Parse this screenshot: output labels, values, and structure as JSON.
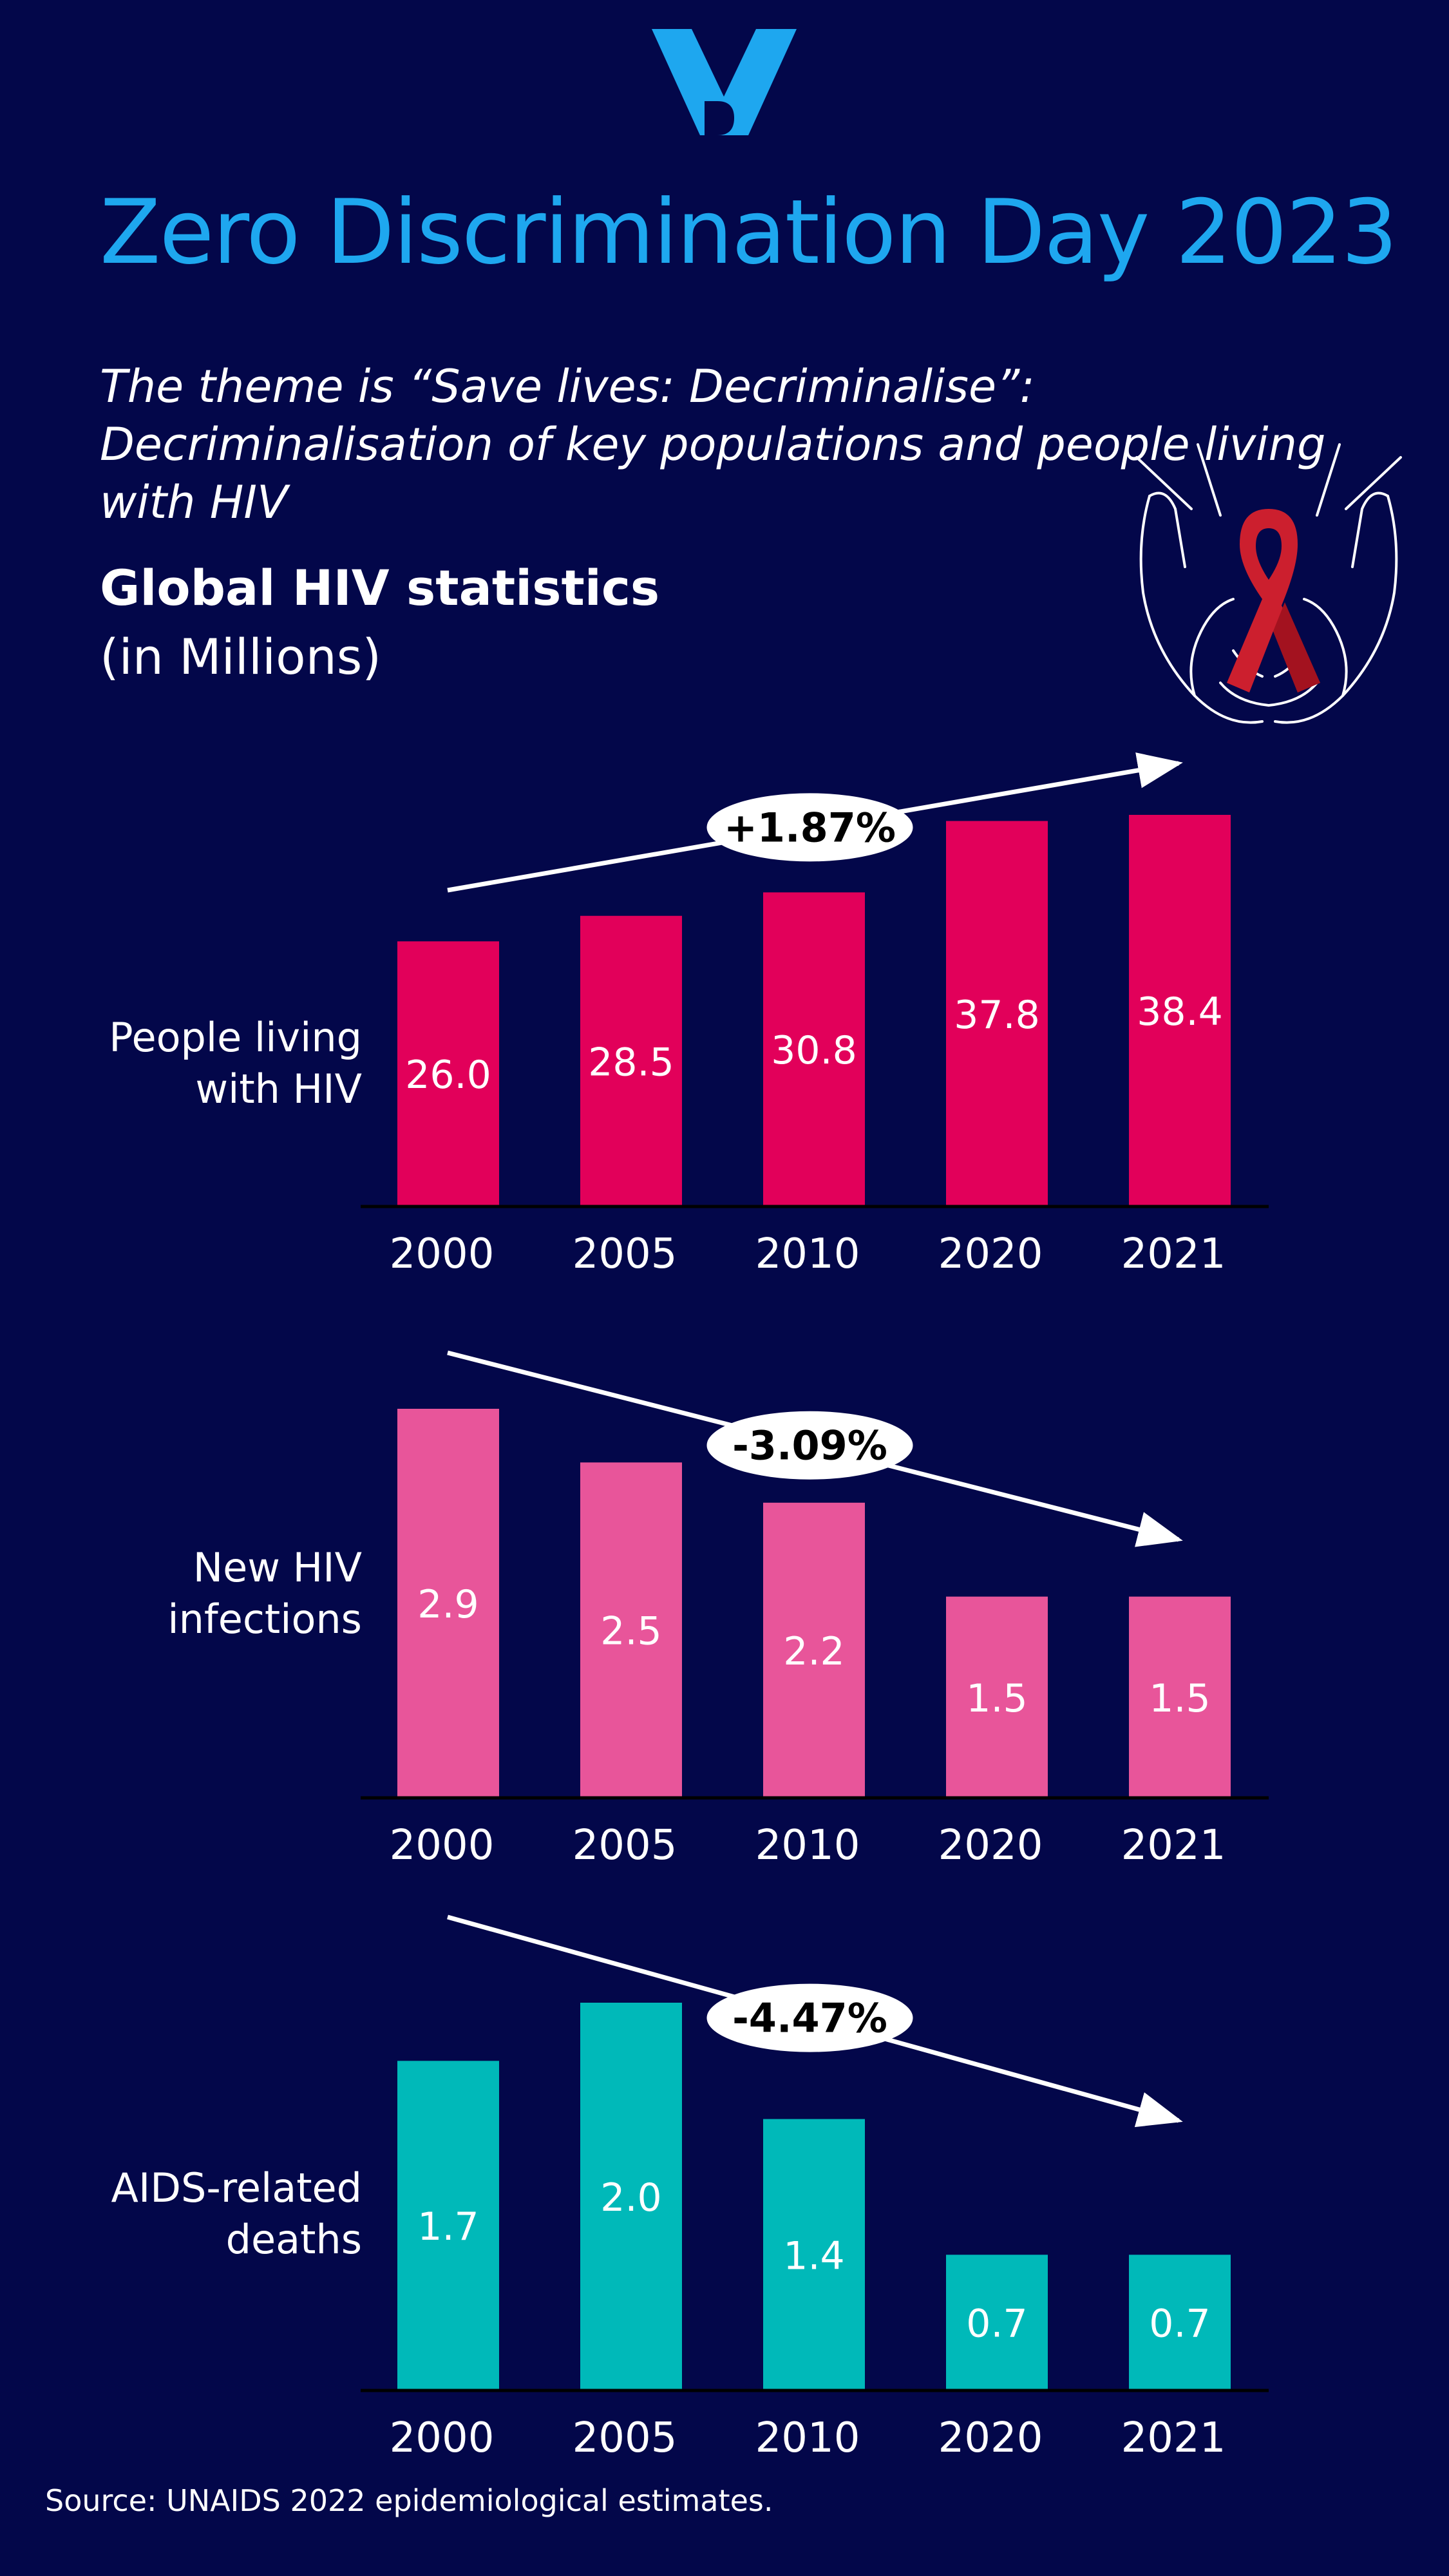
{
  "header": {
    "title": "Zero Discrimination Day 2023",
    "subtitle": "The theme is “Save lives: Decriminalise”: Decriminalisation of key populations and people living with HIV",
    "stats_heading": "Global HIV statistics",
    "stats_unit": "(in Millions)"
  },
  "footer": {
    "source": "Source: UNAIDS 2022 epidemiological estimates."
  },
  "colors": {
    "background": "#03074a",
    "title": "#1ea7ef"
  },
  "chart_data": [
    {
      "type": "bar",
      "label": "People living with HIV",
      "categories": [
        "2000",
        "2005",
        "2010",
        "2020",
        "2021"
      ],
      "values": [
        26.0,
        28.5,
        30.8,
        37.8,
        38.4
      ],
      "value_labels": [
        "26.0",
        "28.5",
        "30.8",
        "37.8",
        "38.4"
      ],
      "trend": "up",
      "trend_label": "+1.87%",
      "color": "#e2005a"
    },
    {
      "type": "bar",
      "label": "New HIV infections",
      "categories": [
        "2000",
        "2005",
        "2010",
        "2020",
        "2021"
      ],
      "values": [
        2.9,
        2.5,
        2.2,
        1.5,
        1.5
      ],
      "value_labels": [
        "2.9",
        "2.5",
        "2.2",
        "1.5",
        "1.5"
      ],
      "trend": "down",
      "trend_label": "-3.09%",
      "color": "#e8559a"
    },
    {
      "type": "bar",
      "label": "AIDS-related deaths",
      "categories": [
        "2000",
        "2005",
        "2010",
        "2020",
        "2021"
      ],
      "values": [
        1.7,
        2.0,
        1.4,
        0.7,
        0.7
      ],
      "value_labels": [
        "1.7",
        "2.0",
        "1.4",
        "0.7",
        "0.7"
      ],
      "trend": "down",
      "trend_label": "-4.47%",
      "color": "#00b9b9"
    }
  ]
}
